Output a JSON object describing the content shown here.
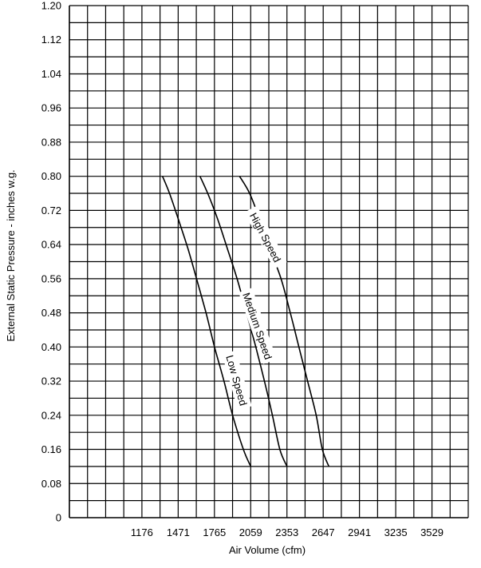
{
  "chart_data": {
    "type": "line",
    "xlabel": "Air Volume (cfm)",
    "ylabel": "External Static Pressure - inches w.g.",
    "x_tick_labels": [
      "1176",
      "1471",
      "1765",
      "2059",
      "2353",
      "2647",
      "2941",
      "3235",
      "3529"
    ],
    "y_tick_labels": [
      "0",
      "0.08",
      "0.16",
      "0.24",
      "0.32",
      "0.40",
      "0.48",
      "0.56",
      "0.64",
      "0.72",
      "0.80",
      "0.88",
      "0.96",
      "1.04",
      "1.12",
      "1.20"
    ],
    "xlim": [
      588,
      4100
    ],
    "ylim": [
      0,
      1.2
    ],
    "grid": true,
    "series": [
      {
        "name": "Low Speed",
        "label_text": "Low Speed",
        "x": [
          1343,
          1400,
          1471,
          1550,
          1619,
          1696,
          1765,
          1842,
          1912,
          1999,
          2059
        ],
        "y": [
          0.8,
          0.76,
          0.7,
          0.63,
          0.56,
          0.48,
          0.4,
          0.32,
          0.24,
          0.16,
          0.12
        ]
      },
      {
        "name": "Medium Speed",
        "label_text": "Medium Speed",
        "x": [
          1647,
          1710,
          1790,
          1870,
          1948,
          2025,
          2100,
          2170,
          2235,
          2295,
          2353
        ],
        "y": [
          0.8,
          0.76,
          0.7,
          0.63,
          0.56,
          0.48,
          0.4,
          0.32,
          0.24,
          0.16,
          0.12
        ]
      },
      {
        "name": "High Speed",
        "label_text": "High Speed",
        "x": [
          1968,
          2050,
          2130,
          2215,
          2305,
          2380,
          2450,
          2520,
          2590,
          2640,
          2693
        ],
        "y": [
          0.8,
          0.76,
          0.7,
          0.63,
          0.56,
          0.48,
          0.4,
          0.32,
          0.24,
          0.16,
          0.12
        ]
      }
    ]
  }
}
